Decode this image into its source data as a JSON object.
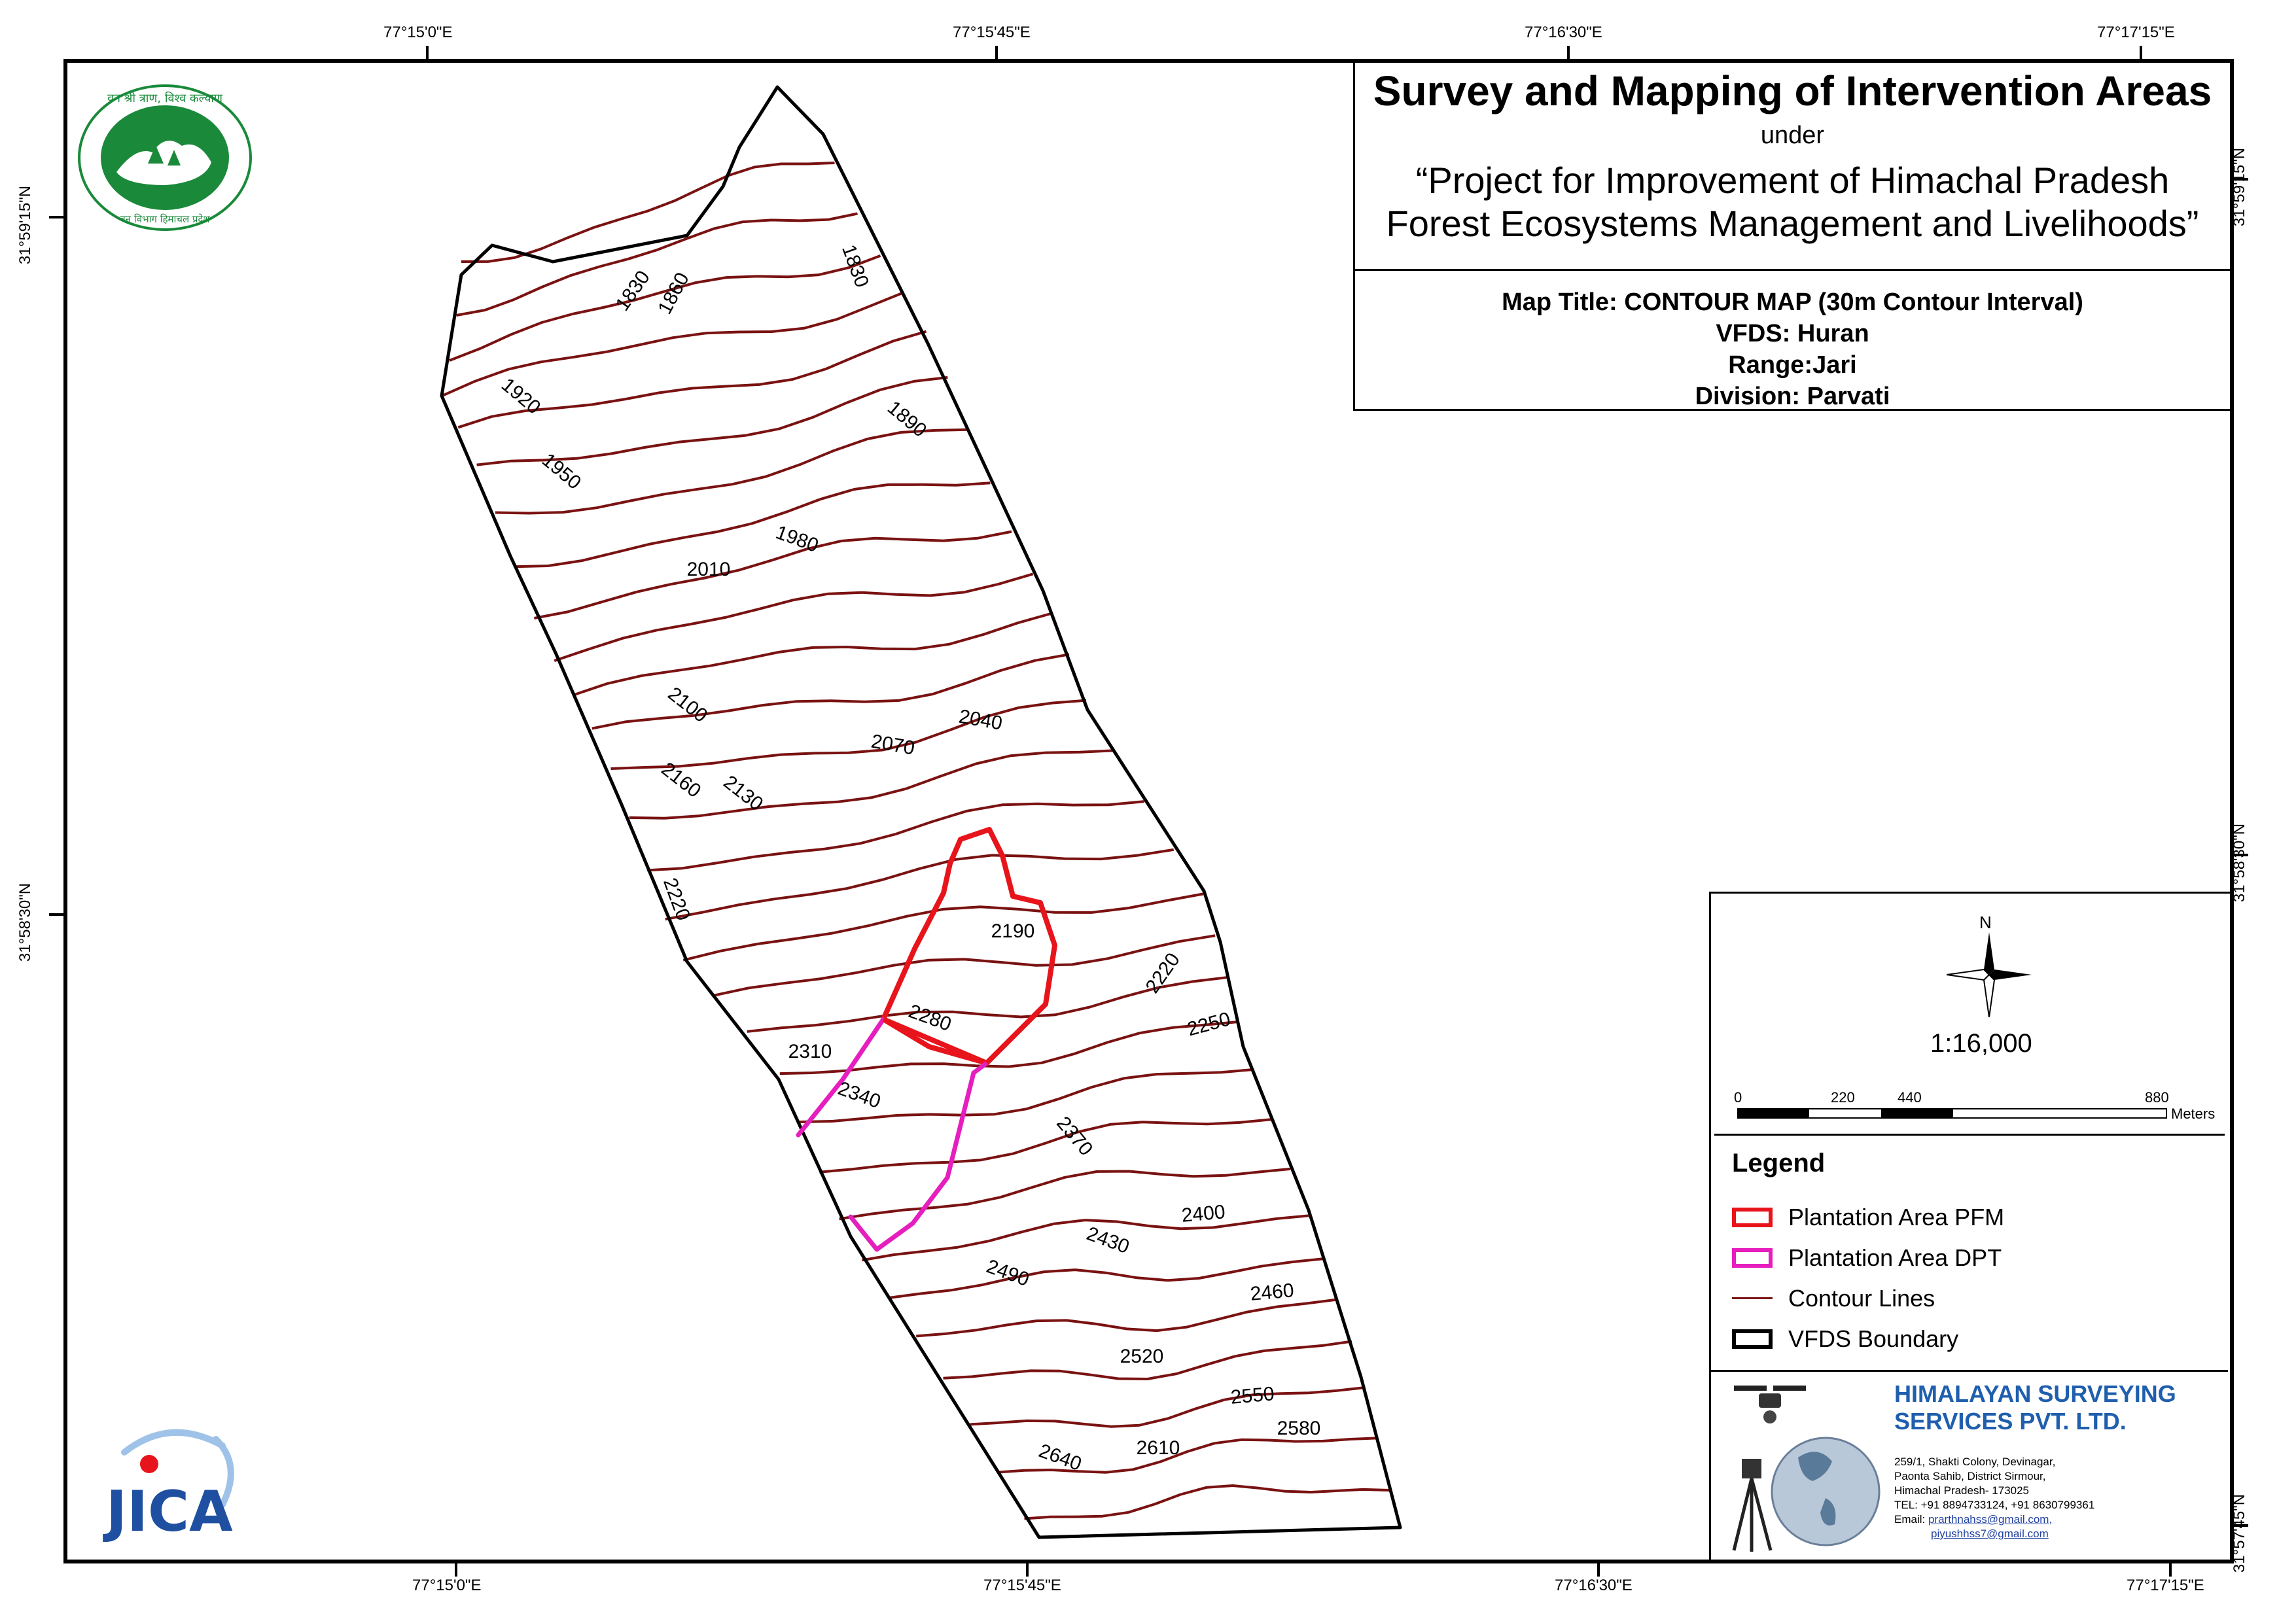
{
  "title": {
    "main": "Survey and Mapping of Intervention Areas",
    "under": "under",
    "project_line1": "“Project for Improvement of Himachal Pradesh",
    "project_line2": "Forest Ecosystems Management and Livelihoods”"
  },
  "map_info": {
    "map_title": "Map Title: CONTOUR MAP (30m Contour Interval)",
    "vfds": "VFDS: Huran",
    "range": "Range:Jari",
    "division": "Division: Parvati"
  },
  "coordinates": {
    "top": [
      "77°15'0\"E",
      "77°15'45\"E",
      "77°16'30\"E",
      "77°17'15\"E"
    ],
    "bottom": [
      "77°15'0\"E",
      "77°15'45\"E",
      "77°16'30\"E",
      "77°17'15\"E"
    ],
    "left": [
      "31°59'15\"N",
      "31°58'30\"N"
    ],
    "right": [
      "31°59'15\"N",
      "31°58'30\"N",
      "31°57'45\"N"
    ]
  },
  "north_arrow": {
    "label": "N",
    "icon": "north-arrow-icon"
  },
  "scale": {
    "ratio": "1:16,000",
    "ticks": [
      "0",
      "220",
      "440",
      "880"
    ],
    "unit": "Meters"
  },
  "legend": {
    "title": "Legend",
    "items": [
      {
        "label": "Plantation Area PFM",
        "color": "#e8141b",
        "kind": "polygon"
      },
      {
        "label": "Plantation Area DPT",
        "color": "#e61ebe",
        "kind": "polygon"
      },
      {
        "label": "Contour Lines",
        "color": "#7a1212",
        "kind": "line"
      },
      {
        "label": "VFDS Boundary",
        "color": "#000000",
        "kind": "polygon"
      }
    ]
  },
  "contour_labels": [
    "1830",
    "1860",
    "1830",
    "1920",
    "1890",
    "1950",
    "1980",
    "2010",
    "2100",
    "2040",
    "2070",
    "2160",
    "2130",
    "2220",
    "2190",
    "2220",
    "2280",
    "2250",
    "2310",
    "2340",
    "2370",
    "2400",
    "2430",
    "2460",
    "2490",
    "2520",
    "2550",
    "2580",
    "2610",
    "2640"
  ],
  "company": {
    "name_line1": "HIMALAYAN SURVEYING",
    "name_line2": "SERVICES PVT. LTD.",
    "address_lines": [
      "259/1, Shakti Colony, Devinagar,",
      "Paonta Sahib, District Sirmour,",
      "Himachal Pradesh- 173025"
    ],
    "tel": "TEL: +91 8894733124, +91 8630799361",
    "email_label": "Email:",
    "email1": "prarthnahss@gmail.com,",
    "email2": "piyushhss7@gmail.com"
  },
  "logos": {
    "forest_dept": {
      "text_top": "वन श्री त्राण, विश्व कल्याण",
      "text_bottom": "वन विभाग हिमाचल प्रदेश",
      "color": "#1a8a3a"
    },
    "jica": {
      "text": "JICA",
      "color": "#1f4fa0"
    }
  },
  "colors": {
    "contour": "#7a1212",
    "pfm": "#e8141b",
    "dpt": "#e61ebe",
    "boundary": "#000000",
    "company": "#1f5fae"
  }
}
